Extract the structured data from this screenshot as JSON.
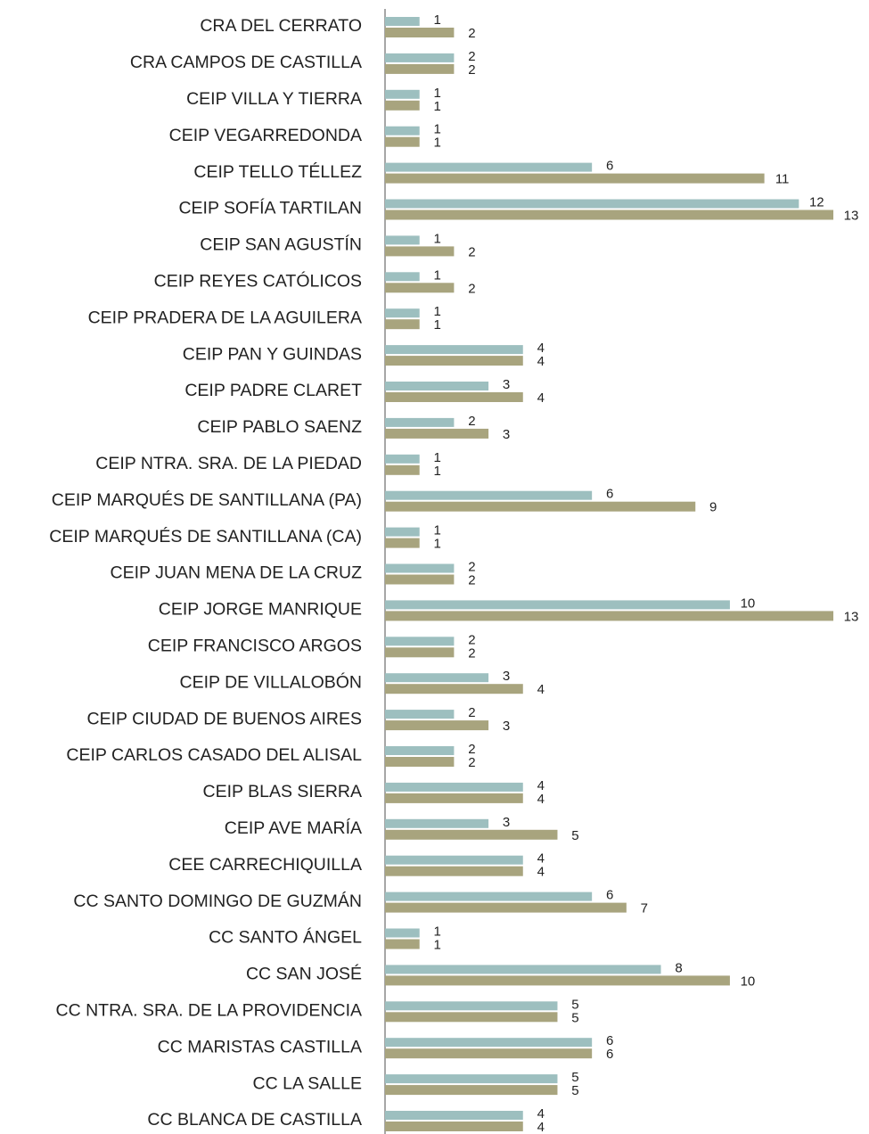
{
  "chart_data": {
    "type": "hbar",
    "categories": [
      "CRA DEL CERRATO",
      "CRA CAMPOS DE CASTILLA",
      "CEIP VILLA Y TIERRA",
      "CEIP VEGARREDONDA",
      "CEIP TELLO TÉLLEZ",
      "CEIP SOFÍA TARTILAN",
      "CEIP SAN AGUSTÍN",
      "CEIP REYES CATÓLICOS",
      "CEIP PRADERA DE LA AGUILERA",
      "CEIP PAN Y GUINDAS",
      "CEIP PADRE CLARET",
      "CEIP PABLO SAENZ",
      "CEIP NTRA. SRA. DE LA PIEDAD",
      "CEIP MARQUÉS DE SANTILLANA (PA)",
      "CEIP MARQUÉS DE SANTILLANA (CA)",
      "CEIP JUAN MENA DE LA CRUZ",
      "CEIP JORGE MANRIQUE",
      "CEIP FRANCISCO ARGOS",
      "CEIP DE VILLALOBÓN",
      "CEIP CIUDAD DE BUENOS AIRES",
      "CEIP CARLOS CASADO DEL ALISAL",
      "CEIP BLAS SIERRA",
      "CEIP AVE MARÍA",
      "CEE CARRECHIQUILLA",
      "CC SANTO DOMINGO DE GUZMÁN",
      "CC SANTO ÁNGEL",
      "CC SAN JOSÉ",
      "CC NTRA. SRA. DE LA PROVIDENCIA",
      "CC MARISTAS CASTILLA",
      "CC LA SALLE",
      "CC BLANCA DE CASTILLA"
    ],
    "series": [
      {
        "color": "#9dbfbf",
        "values": [
          1,
          2,
          1,
          1,
          6,
          12,
          1,
          1,
          1,
          4,
          3,
          2,
          1,
          6,
          1,
          2,
          10,
          2,
          3,
          2,
          2,
          4,
          3,
          4,
          6,
          1,
          8,
          5,
          6,
          5,
          4
        ]
      },
      {
        "color": "#a8a47e",
        "values": [
          2,
          2,
          1,
          1,
          11,
          13,
          2,
          2,
          1,
          4,
          4,
          3,
          1,
          9,
          1,
          2,
          13,
          2,
          4,
          3,
          2,
          4,
          5,
          4,
          7,
          1,
          10,
          5,
          6,
          5,
          4
        ]
      }
    ],
    "xlim": [
      0,
      13
    ]
  }
}
